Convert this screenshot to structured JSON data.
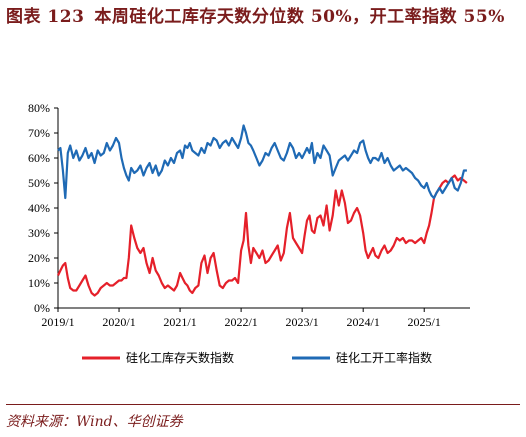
{
  "header": {
    "fig_label": "图表 123",
    "title": "本周硅化工库存天数分位数 50%，开工率指数 55%"
  },
  "source": "资料来源：Wind、华创证券",
  "colors": {
    "inventory": "#e5202a",
    "utilization": "#1f6ab5",
    "accent": "#7a1c1c"
  },
  "chart_data": {
    "type": "line",
    "title": "",
    "xlabel": "",
    "ylabel": "",
    "y_tick_labels": [
      "0%",
      "10%",
      "20%",
      "30%",
      "40%",
      "50%",
      "60%",
      "70%",
      "80%"
    ],
    "x_tick_labels": [
      "2019/1",
      "2020/1",
      "2021/1",
      "2022/1",
      "2023/1",
      "2024/1",
      "2025/1"
    ],
    "ylim": [
      0,
      80
    ],
    "xlim": [
      2019.0,
      2025.75
    ],
    "legend_position": "bottom",
    "grid": false,
    "series": [
      {
        "name": "硅化工库存天数指数",
        "color": "#e5202a",
        "x": [
          2019.0,
          2019.04,
          2019.08,
          2019.12,
          2019.16,
          2019.2,
          2019.25,
          2019.3,
          2019.35,
          2019.4,
          2019.45,
          2019.5,
          2019.55,
          2019.6,
          2019.65,
          2019.7,
          2019.75,
          2019.8,
          2019.85,
          2019.9,
          2019.95,
          2020.0,
          2020.04,
          2020.08,
          2020.12,
          2020.16,
          2020.2,
          2020.25,
          2020.3,
          2020.35,
          2020.4,
          2020.45,
          2020.5,
          2020.55,
          2020.6,
          2020.65,
          2020.7,
          2020.75,
          2020.8,
          2020.85,
          2020.9,
          2020.95,
          2021.0,
          2021.04,
          2021.08,
          2021.12,
          2021.16,
          2021.2,
          2021.25,
          2021.3,
          2021.35,
          2021.4,
          2021.45,
          2021.5,
          2021.55,
          2021.6,
          2021.65,
          2021.7,
          2021.75,
          2021.8,
          2021.85,
          2021.9,
          2021.95,
          2022.0,
          2022.04,
          2022.08,
          2022.12,
          2022.16,
          2022.2,
          2022.25,
          2022.3,
          2022.35,
          2022.4,
          2022.45,
          2022.5,
          2022.55,
          2022.6,
          2022.65,
          2022.7,
          2022.75,
          2022.8,
          2022.85,
          2022.9,
          2022.95,
          2023.0,
          2023.04,
          2023.08,
          2023.12,
          2023.16,
          2023.2,
          2023.25,
          2023.3,
          2023.35,
          2023.4,
          2023.45,
          2023.5,
          2023.55,
          2023.6,
          2023.65,
          2023.7,
          2023.75,
          2023.8,
          2023.85,
          2023.9,
          2023.95,
          2024.0,
          2024.04,
          2024.08,
          2024.12,
          2024.16,
          2024.2,
          2024.25,
          2024.3,
          2024.35,
          2024.4,
          2024.45,
          2024.5,
          2024.55,
          2024.6,
          2024.65,
          2024.7,
          2024.75,
          2024.8,
          2024.85,
          2024.9,
          2024.95,
          2025.0,
          2025.04,
          2025.08,
          2025.12,
          2025.16,
          2025.2,
          2025.25,
          2025.3,
          2025.35,
          2025.4,
          2025.45,
          2025.5,
          2025.55,
          2025.6,
          2025.65,
          2025.7
        ],
        "values": [
          13,
          15,
          17,
          18,
          12,
          8,
          7,
          7,
          9,
          11,
          13,
          9,
          6,
          5,
          6,
          8,
          9,
          10,
          9,
          9,
          10,
          11,
          11,
          12,
          12,
          20,
          33,
          28,
          24,
          22,
          24,
          18,
          14,
          20,
          15,
          13,
          10,
          8,
          9,
          8,
          7,
          9,
          14,
          12,
          10,
          9,
          7,
          6,
          8,
          9,
          18,
          21,
          14,
          20,
          22,
          15,
          9,
          8,
          10,
          11,
          11,
          12,
          10,
          23,
          27,
          38,
          25,
          18,
          24,
          22,
          20,
          23,
          18,
          19,
          21,
          23,
          25,
          19,
          22,
          32,
          38,
          28,
          26,
          24,
          22,
          29,
          35,
          37,
          31,
          30,
          36,
          37,
          33,
          41,
          31,
          37,
          47,
          41,
          47,
          42,
          34,
          35,
          38,
          40,
          37,
          30,
          23,
          20,
          22,
          24,
          21,
          20,
          23,
          25,
          22,
          23,
          25,
          28,
          27,
          28,
          26,
          27,
          27,
          26,
          27,
          28,
          26,
          30,
          33,
          38,
          44,
          46,
          48,
          50,
          51,
          50,
          52,
          53,
          51,
          52,
          51,
          50
        ],
        "ordinal": true
      },
      {
        "name": "硅化工开工率指数",
        "color": "#1f6ab5",
        "x": [
          2019.0,
          2019.04,
          2019.08,
          2019.12,
          2019.16,
          2019.2,
          2019.25,
          2019.3,
          2019.35,
          2019.4,
          2019.45,
          2019.5,
          2019.55,
          2019.6,
          2019.65,
          2019.7,
          2019.75,
          2019.8,
          2019.85,
          2019.9,
          2019.95,
          2020.0,
          2020.04,
          2020.08,
          2020.12,
          2020.16,
          2020.2,
          2020.25,
          2020.3,
          2020.35,
          2020.4,
          2020.45,
          2020.5,
          2020.55,
          2020.6,
          2020.65,
          2020.7,
          2020.75,
          2020.8,
          2020.85,
          2020.9,
          2020.95,
          2021.0,
          2021.04,
          2021.08,
          2021.12,
          2021.16,
          2021.2,
          2021.25,
          2021.3,
          2021.35,
          2021.4,
          2021.45,
          2021.5,
          2021.55,
          2021.6,
          2021.65,
          2021.7,
          2021.75,
          2021.8,
          2021.85,
          2021.9,
          2021.95,
          2022.0,
          2022.04,
          2022.08,
          2022.12,
          2022.16,
          2022.2,
          2022.25,
          2022.3,
          2022.35,
          2022.4,
          2022.45,
          2022.5,
          2022.55,
          2022.6,
          2022.65,
          2022.7,
          2022.75,
          2022.8,
          2022.85,
          2022.9,
          2022.95,
          2023.0,
          2023.04,
          2023.08,
          2023.12,
          2023.16,
          2023.2,
          2023.25,
          2023.3,
          2023.35,
          2023.4,
          2023.45,
          2023.5,
          2023.55,
          2023.6,
          2023.65,
          2023.7,
          2023.75,
          2023.8,
          2023.85,
          2023.9,
          2023.95,
          2024.0,
          2024.04,
          2024.08,
          2024.12,
          2024.16,
          2024.2,
          2024.25,
          2024.3,
          2024.35,
          2024.4,
          2024.45,
          2024.5,
          2024.55,
          2024.6,
          2024.65,
          2024.7,
          2024.75,
          2024.8,
          2024.85,
          2024.9,
          2024.95,
          2025.0,
          2025.04,
          2025.08,
          2025.12,
          2025.16,
          2025.2,
          2025.25,
          2025.3,
          2025.35,
          2025.4,
          2025.45,
          2025.5,
          2025.55,
          2025.6,
          2025.65,
          2025.7
        ],
        "values": [
          63,
          64,
          55,
          44,
          62,
          65,
          60,
          63,
          59,
          61,
          64,
          60,
          62,
          58,
          63,
          61,
          62,
          66,
          63,
          65,
          68,
          66,
          60,
          56,
          53,
          51,
          56,
          54,
          55,
          57,
          53,
          56,
          58,
          54,
          57,
          53,
          55,
          59,
          57,
          60,
          58,
          62,
          63,
          60,
          65,
          64,
          66,
          63,
          62,
          61,
          64,
          62,
          66,
          65,
          68,
          67,
          64,
          66,
          67,
          65,
          68,
          66,
          64,
          68,
          73,
          70,
          66,
          65,
          63,
          60,
          57,
          59,
          62,
          61,
          64,
          66,
          63,
          60,
          59,
          62,
          66,
          64,
          60,
          62,
          60,
          62,
          64,
          62,
          66,
          58,
          62,
          60,
          65,
          63,
          61,
          53,
          56,
          59,
          60,
          61,
          59,
          61,
          63,
          62,
          66,
          67,
          63,
          60,
          58,
          60,
          60,
          59,
          62,
          58,
          60,
          57,
          55,
          56,
          57,
          55,
          56,
          55,
          54,
          52,
          51,
          49,
          48,
          50,
          47,
          45,
          44,
          46,
          48,
          46,
          48,
          50,
          52,
          48,
          47,
          50,
          55,
          55
        ],
        "ordinal": true
      }
    ]
  }
}
